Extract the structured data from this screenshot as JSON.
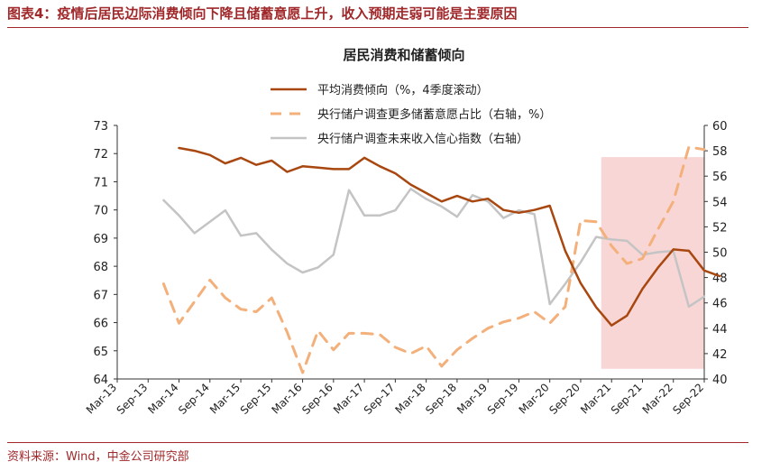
{
  "header": {
    "figure_title": "图表4：疫情后居民边际消费倾向下降且储蓄意愿上升，收入预期走弱可能是主要原因"
  },
  "footer": {
    "source": "资料来源：Wind，中金公司研究部"
  },
  "chart_data": {
    "type": "line",
    "title": "居民消费和储蓄倾向",
    "x_ticks": [
      "Mar-13",
      "Sep-13",
      "Mar-14",
      "Sep-14",
      "Mar-15",
      "Sep-15",
      "Mar-16",
      "Sep-16",
      "Mar-17",
      "Sep-17",
      "Mar-18",
      "Sep-18",
      "Mar-19",
      "Sep-19",
      "Mar-20",
      "Sep-20",
      "Mar-21",
      "Sep-21",
      "Mar-22",
      "Sep-22"
    ],
    "x_range": [
      "2013-03",
      "2022-09"
    ],
    "y_left": {
      "ylim": [
        64,
        73
      ],
      "ticks": [
        64,
        65,
        66,
        67,
        68,
        69,
        70,
        71,
        72,
        73
      ]
    },
    "y_right": {
      "ylim": [
        40,
        60
      ],
      "ticks": [
        40,
        42,
        44,
        46,
        48,
        50,
        52,
        54,
        56,
        58,
        60
      ]
    },
    "shaded_region": {
      "x": [
        "2021-01",
        "2022-09"
      ],
      "color": "#f9d6d6"
    },
    "legend": {
      "position": "top"
    },
    "series": [
      {
        "name": "平均消费倾向（%，4季度滚动）",
        "axis": "left",
        "style": "solid",
        "color": "#a8470f",
        "points": [
          [
            "2014-03",
            72.2
          ],
          [
            "2014-06",
            72.1
          ],
          [
            "2014-09",
            71.95
          ],
          [
            "2014-12",
            71.65
          ],
          [
            "2015-03",
            71.85
          ],
          [
            "2015-06",
            71.6
          ],
          [
            "2015-09",
            71.75
          ],
          [
            "2015-12",
            71.35
          ],
          [
            "2016-03",
            71.55
          ],
          [
            "2016-06",
            71.5
          ],
          [
            "2016-09",
            71.45
          ],
          [
            "2016-12",
            71.45
          ],
          [
            "2017-03",
            71.85
          ],
          [
            "2017-06",
            71.55
          ],
          [
            "2017-09",
            71.3
          ],
          [
            "2017-12",
            70.9
          ],
          [
            "2018-03",
            70.6
          ],
          [
            "2018-06",
            70.3
          ],
          [
            "2018-09",
            70.5
          ],
          [
            "2018-12",
            70.3
          ],
          [
            "2019-03",
            70.4
          ],
          [
            "2019-06",
            70.0
          ],
          [
            "2019-09",
            69.9
          ],
          [
            "2019-12",
            70.0
          ],
          [
            "2020-03",
            70.15
          ],
          [
            "2020-06",
            68.55
          ],
          [
            "2020-09",
            67.4
          ],
          [
            "2020-12",
            66.55
          ],
          [
            "2021-03",
            65.9
          ],
          [
            "2021-06",
            66.25
          ],
          [
            "2021-09",
            67.2
          ],
          [
            "2021-12",
            67.95
          ],
          [
            "2022-03",
            68.6
          ],
          [
            "2022-06",
            68.55
          ],
          [
            "2022-09",
            67.85
          ],
          [
            "2022-12",
            67.65
          ]
        ]
      },
      {
        "name": "央行储户调查更多储蓄意愿占比（右轴，%）",
        "axis": "right",
        "style": "dashed",
        "color": "#f3b07a",
        "points": [
          [
            "2013-12",
            47.5
          ],
          [
            "2014-03",
            44.4
          ],
          [
            "2014-06",
            46.1
          ],
          [
            "2014-09",
            47.8
          ],
          [
            "2014-12",
            46.4
          ],
          [
            "2015-03",
            45.5
          ],
          [
            "2015-06",
            45.3
          ],
          [
            "2015-09",
            46.4
          ],
          [
            "2015-12",
            43.7
          ],
          [
            "2016-03",
            40.5
          ],
          [
            "2016-06",
            43.8
          ],
          [
            "2016-09",
            42.3
          ],
          [
            "2016-12",
            43.6
          ],
          [
            "2017-03",
            43.6
          ],
          [
            "2017-06",
            43.5
          ],
          [
            "2017-09",
            42.5
          ],
          [
            "2017-12",
            42.0
          ],
          [
            "2018-03",
            42.6
          ],
          [
            "2018-06",
            41.0
          ],
          [
            "2018-09",
            42.3
          ],
          [
            "2018-12",
            43.2
          ],
          [
            "2019-03",
            44.0
          ],
          [
            "2019-06",
            44.5
          ],
          [
            "2019-09",
            44.8
          ],
          [
            "2019-12",
            45.3
          ],
          [
            "2020-03",
            44.4
          ],
          [
            "2020-06",
            45.7
          ],
          [
            "2020-09",
            52.5
          ],
          [
            "2020-12",
            52.4
          ],
          [
            "2021-03",
            50.5
          ],
          [
            "2021-06",
            49.1
          ],
          [
            "2021-09",
            49.5
          ],
          [
            "2021-12",
            51.8
          ],
          [
            "2022-03",
            54.0
          ],
          [
            "2022-06",
            58.3
          ],
          [
            "2022-09",
            58.1
          ]
        ]
      },
      {
        "name": "央行储户调查未来收入信心指数（右轴）",
        "axis": "right",
        "style": "solid",
        "color": "#c4c4c4",
        "points": [
          [
            "2013-12",
            54.1
          ],
          [
            "2014-03",
            52.9
          ],
          [
            "2014-06",
            51.5
          ],
          [
            "2014-09",
            52.4
          ],
          [
            "2014-12",
            53.3
          ],
          [
            "2015-03",
            51.3
          ],
          [
            "2015-06",
            51.5
          ],
          [
            "2015-09",
            50.2
          ],
          [
            "2015-12",
            49.1
          ],
          [
            "2016-03",
            48.4
          ],
          [
            "2016-06",
            48.8
          ],
          [
            "2016-09",
            49.8
          ],
          [
            "2016-12",
            54.9
          ],
          [
            "2017-03",
            52.9
          ],
          [
            "2017-06",
            52.9
          ],
          [
            "2017-09",
            53.3
          ],
          [
            "2017-12",
            55.0
          ],
          [
            "2018-03",
            54.2
          ],
          [
            "2018-06",
            53.6
          ],
          [
            "2018-09",
            52.8
          ],
          [
            "2018-12",
            54.5
          ],
          [
            "2019-03",
            54.0
          ],
          [
            "2019-06",
            52.7
          ],
          [
            "2019-09",
            53.3
          ],
          [
            "2019-12",
            53.0
          ],
          [
            "2020-03",
            45.9
          ],
          [
            "2020-06",
            47.5
          ],
          [
            "2020-09",
            49.2
          ],
          [
            "2020-12",
            51.2
          ],
          [
            "2021-03",
            51.0
          ],
          [
            "2021-06",
            50.9
          ],
          [
            "2021-09",
            49.8
          ],
          [
            "2021-12",
            50.0
          ],
          [
            "2022-03",
            50.1
          ],
          [
            "2022-06",
            45.7
          ],
          [
            "2022-09",
            46.5
          ]
        ]
      }
    ]
  }
}
